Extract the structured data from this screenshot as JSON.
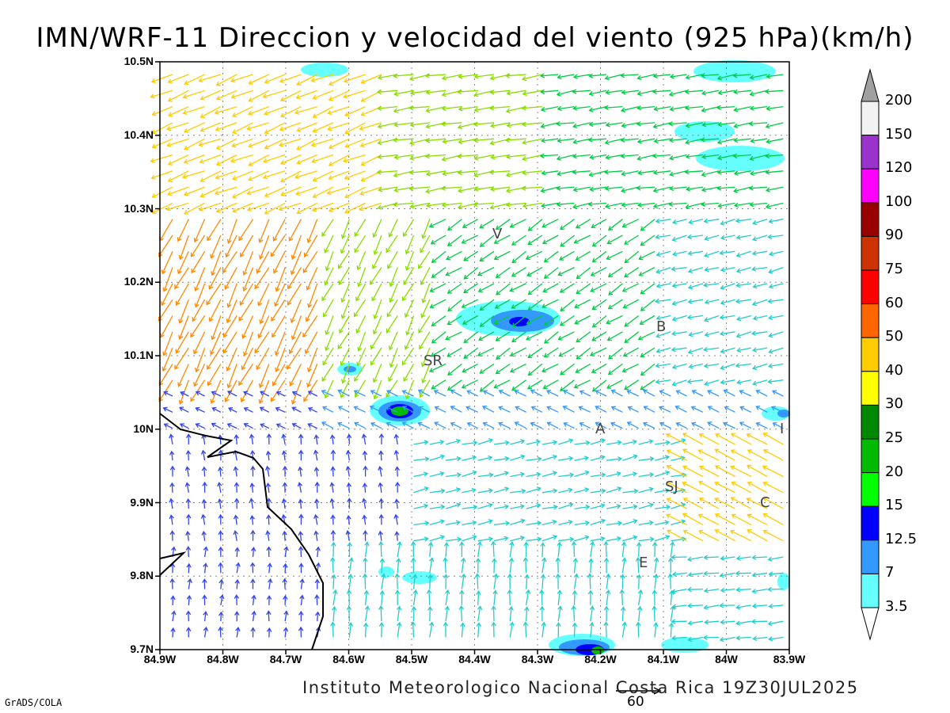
{
  "title": "IMN/WRF-11 Direccion y velocidad del viento (925 hPa)(km/h)",
  "map": {
    "lat_labels": [
      "10.5N",
      "10.4N",
      "10.3N",
      "10.2N",
      "10.1N",
      "10N",
      "9.9N",
      "9.8N",
      "9.7N"
    ],
    "lon_labels": [
      "84.9W",
      "84.8W",
      "84.7W",
      "84.6W",
      "84.5W",
      "84.4W",
      "84.3W",
      "84.2W",
      "84.1W",
      "84W",
      "83.9W"
    ],
    "city_labels": [
      "V",
      "B",
      "SR",
      "A",
      "SJ",
      "C",
      "E",
      "I"
    ],
    "reference_vector_label": "60"
  },
  "colorbar": {
    "labels": [
      "200",
      "150",
      "120",
      "100",
      "90",
      "75",
      "60",
      "50",
      "40",
      "30",
      "25",
      "20",
      "15",
      "12.5",
      "7",
      "3.5"
    ],
    "colors": [
      "#a0a0a0",
      "#f2f2f2",
      "#9a33cc",
      "#ff00ff",
      "#990000",
      "#cc3300",
      "#ff0000",
      "#ff6600",
      "#ffcc00",
      "#ffff00",
      "#008800",
      "#00bb00",
      "#00ff00",
      "#0000ff",
      "#3399ff",
      "#66ffff"
    ]
  },
  "footer": "Instituto Meteorologico Nacional Costa Rica  19Z30JUL2025",
  "grads_label": "GrADS/COLA"
}
